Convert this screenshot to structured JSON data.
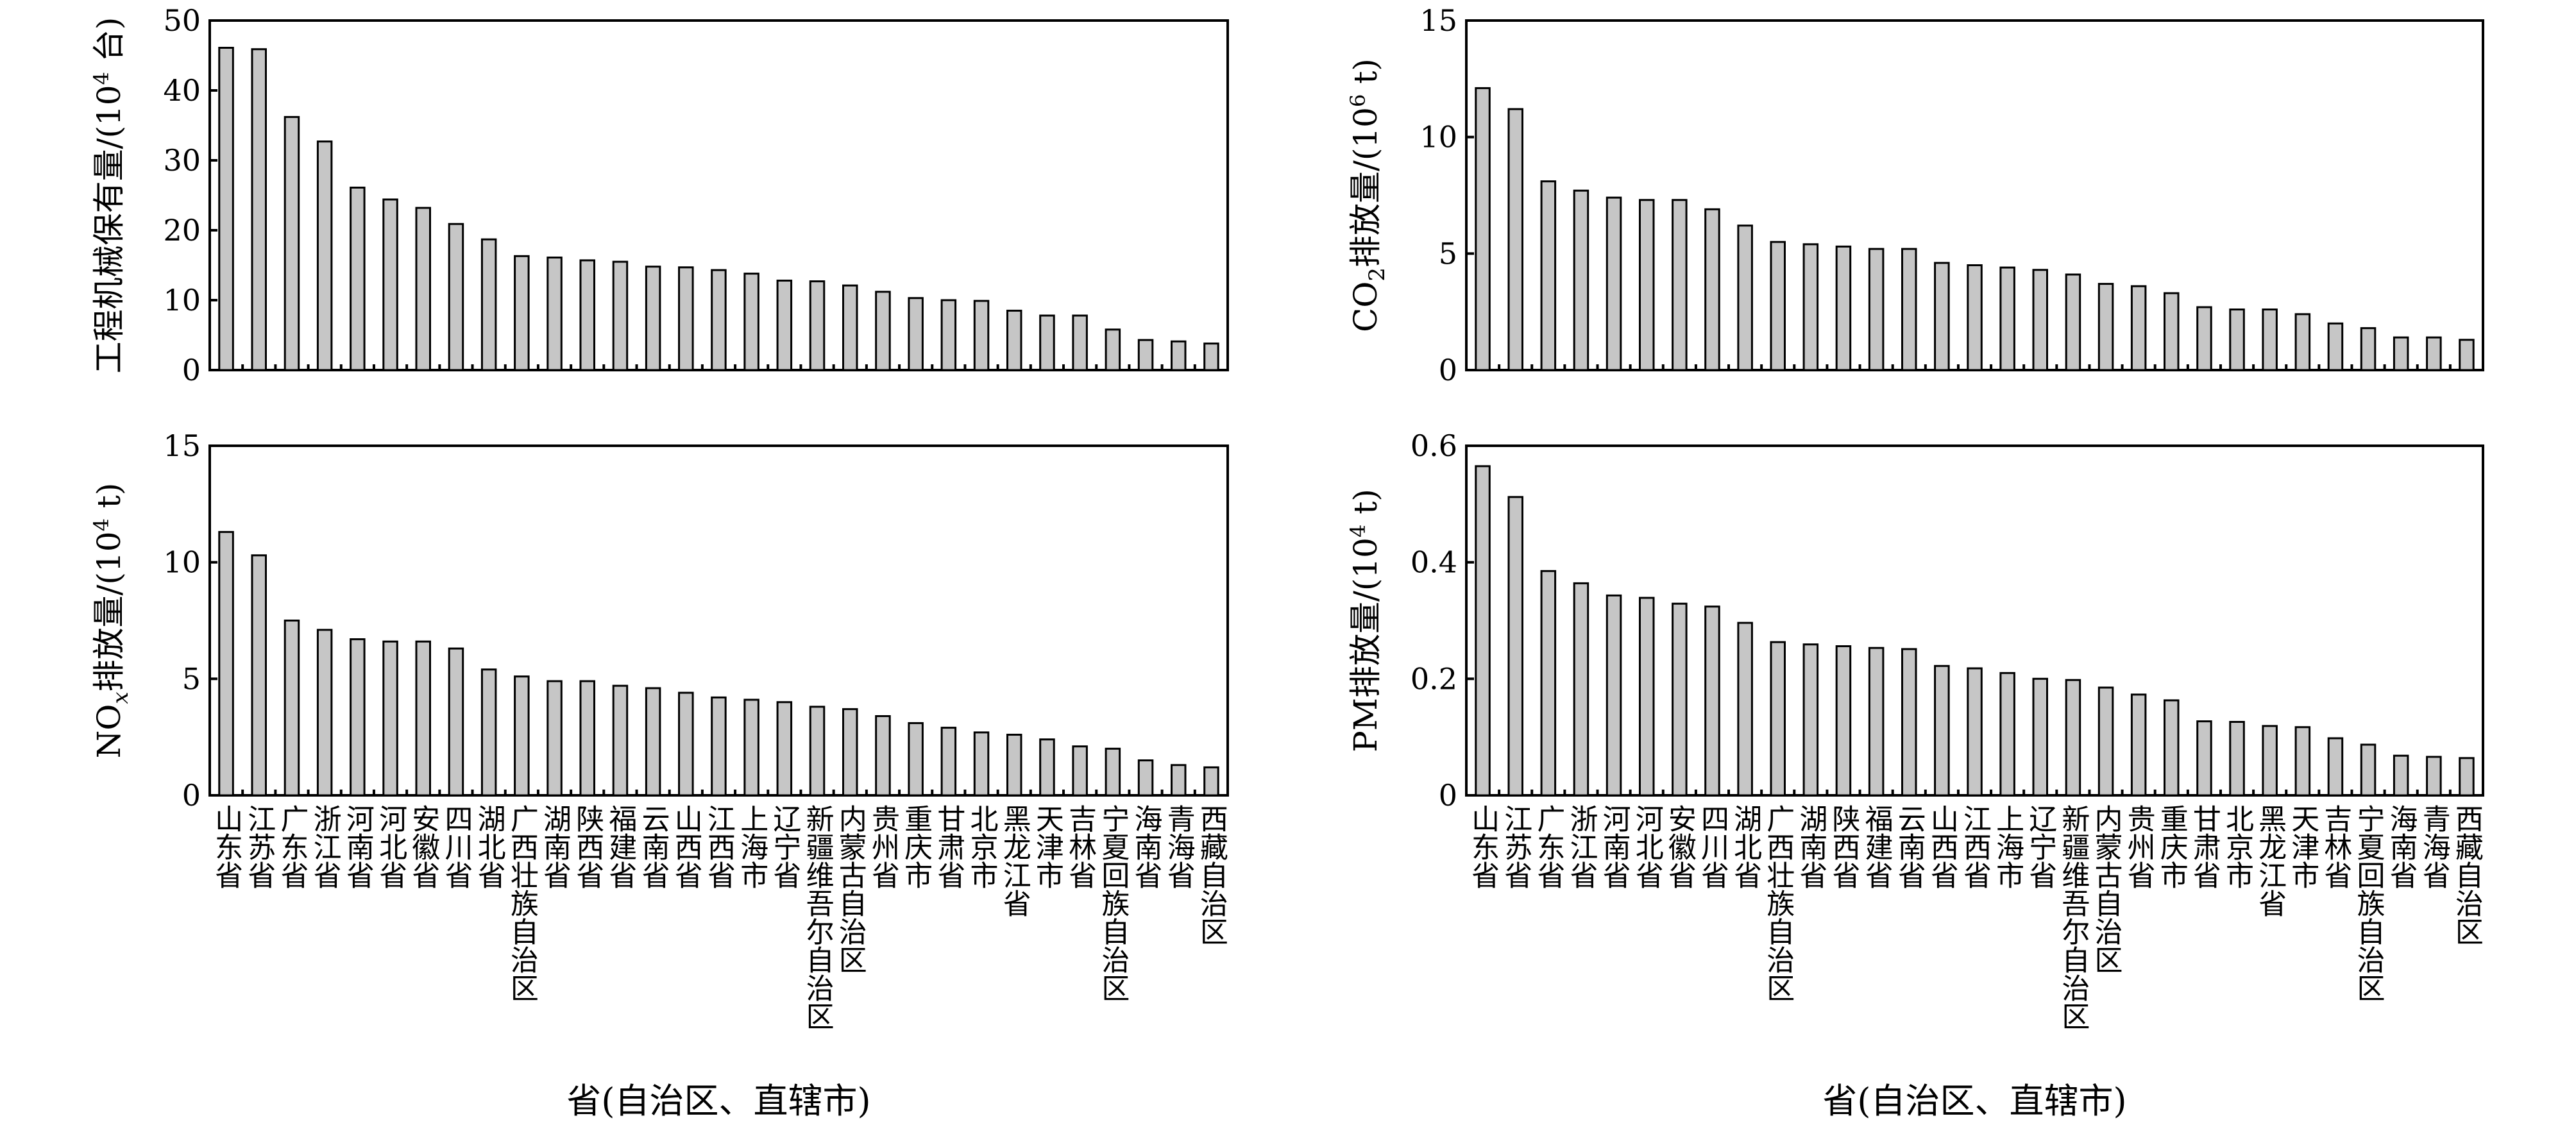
{
  "categories": [
    "山东省",
    "江苏省",
    "广东省",
    "浙江省",
    "河南省",
    "河北省",
    "安徽省",
    "四川省",
    "湖北省",
    "广西壮族自治区",
    "湖南省",
    "陕西省",
    "福建省",
    "云南省",
    "山西省",
    "江西省",
    "上海市",
    "辽宁省",
    "新疆维吾尔自治区",
    "内蒙古自治区",
    "贵州省",
    "重庆市",
    "甘肃省",
    "北京市",
    "黑龙江省",
    "天津市",
    "吉林省",
    "宁夏回族自治区",
    "海南省",
    "青海省",
    "西藏自治区"
  ],
  "charts": [
    {
      "id": "machinery",
      "ylabel_main": "工程机械保有量/(10",
      "ylabel_sup": "4",
      "ylabel_unit": " 台)",
      "xlabel": "",
      "ylim": [
        0,
        50
      ],
      "yticks": [
        "0",
        "10",
        "20",
        "30",
        "40",
        "50"
      ]
    },
    {
      "id": "co2",
      "ylabel_pre": "CO",
      "ylabel_sub": "2",
      "ylabel_main": "排放量/(10",
      "ylabel_sup": "6",
      "ylabel_unit": " t)",
      "xlabel": "",
      "ylim": [
        0,
        15
      ],
      "yticks": [
        "0",
        "5",
        "10",
        "15"
      ]
    },
    {
      "id": "nox",
      "ylabel_pre": "NO",
      "ylabel_sub": "x",
      "ylabel_main": "排放量/(10",
      "ylabel_sup": "4",
      "ylabel_unit": " t)",
      "xlabel": "省(自治区、直辖市)",
      "ylim": [
        0,
        15
      ],
      "yticks": [
        "0",
        "5",
        "10",
        "15"
      ]
    },
    {
      "id": "pm",
      "ylabel_main": "PM排放量/(10",
      "ylabel_sup": "4",
      "ylabel_unit": " t)",
      "xlabel": "省(自治区、直辖市)",
      "ylim": [
        0,
        0.6
      ],
      "yticks": [
        "0",
        "0.2",
        "0.4",
        "0.6"
      ]
    }
  ],
  "chart_data": [
    {
      "type": "bar",
      "ylabel": "工程机械保有量/(10^4 台)",
      "ylim": [
        0,
        50
      ],
      "categories": [
        "山东省",
        "江苏省",
        "广东省",
        "浙江省",
        "河南省",
        "河北省",
        "安徽省",
        "四川省",
        "湖北省",
        "广西壮族自治区",
        "湖南省",
        "陕西省",
        "福建省",
        "云南省",
        "山西省",
        "江西省",
        "上海市",
        "辽宁省",
        "新疆维吾尔自治区",
        "内蒙古自治区",
        "贵州省",
        "重庆市",
        "甘肃省",
        "北京市",
        "黑龙江省",
        "天津市",
        "吉林省",
        "宁夏回族自治区",
        "海南省",
        "青海省",
        "西藏自治区"
      ],
      "values": [
        46.1,
        45.9,
        36.2,
        32.7,
        26.1,
        24.4,
        23.2,
        20.9,
        18.7,
        16.3,
        16.1,
        15.7,
        15.5,
        14.8,
        14.7,
        14.3,
        13.8,
        12.8,
        12.7,
        12.1,
        11.2,
        10.3,
        10.0,
        9.9,
        8.5,
        7.8,
        7.8,
        5.8,
        4.3,
        4.1,
        3.8
      ],
      "grid": false
    },
    {
      "type": "bar",
      "ylabel": "CO2排放量/(10^6 t)",
      "ylim": [
        0,
        15
      ],
      "categories": [
        "山东省",
        "江苏省",
        "广东省",
        "浙江省",
        "河南省",
        "河北省",
        "安徽省",
        "四川省",
        "湖北省",
        "广西壮族自治区",
        "湖南省",
        "陕西省",
        "福建省",
        "云南省",
        "山西省",
        "江西省",
        "上海市",
        "辽宁省",
        "新疆维吾尔自治区",
        "内蒙古自治区",
        "贵州省",
        "重庆市",
        "甘肃省",
        "北京市",
        "黑龙江省",
        "天津市",
        "吉林省",
        "宁夏回族自治区",
        "海南省",
        "青海省",
        "西藏自治区"
      ],
      "values": [
        12.1,
        11.2,
        8.1,
        7.7,
        7.4,
        7.3,
        7.3,
        6.9,
        6.2,
        5.5,
        5.4,
        5.3,
        5.2,
        5.2,
        4.6,
        4.5,
        4.4,
        4.3,
        4.1,
        3.7,
        3.6,
        3.3,
        2.7,
        2.6,
        2.6,
        2.4,
        2.0,
        1.8,
        1.4,
        1.4,
        1.3
      ],
      "grid": false
    },
    {
      "type": "bar",
      "ylabel": "NOx排放量/(10^4 t)",
      "xlabel": "省(自治区、直辖市)",
      "ylim": [
        0,
        15
      ],
      "categories": [
        "山东省",
        "江苏省",
        "广东省",
        "浙江省",
        "河南省",
        "河北省",
        "安徽省",
        "四川省",
        "湖北省",
        "广西壮族自治区",
        "湖南省",
        "陕西省",
        "福建省",
        "云南省",
        "山西省",
        "江西省",
        "上海市",
        "辽宁省",
        "新疆维吾尔自治区",
        "内蒙古自治区",
        "贵州省",
        "重庆市",
        "甘肃省",
        "北京市",
        "黑龙江省",
        "天津市",
        "吉林省",
        "宁夏回族自治区",
        "海南省",
        "青海省",
        "西藏自治区"
      ],
      "values": [
        11.3,
        10.3,
        7.5,
        7.1,
        6.7,
        6.6,
        6.6,
        6.3,
        5.4,
        5.1,
        4.9,
        4.9,
        4.7,
        4.6,
        4.4,
        4.2,
        4.1,
        4.0,
        3.8,
        3.7,
        3.4,
        3.1,
        2.9,
        2.7,
        2.6,
        2.4,
        2.1,
        2.0,
        1.5,
        1.3,
        1.2
      ],
      "grid": false
    },
    {
      "type": "bar",
      "ylabel": "PM排放量/(10^4 t)",
      "xlabel": "省(自治区、直辖市)",
      "ylim": [
        0,
        0.6
      ],
      "categories": [
        "山东省",
        "江苏省",
        "广东省",
        "浙江省",
        "河南省",
        "河北省",
        "安徽省",
        "四川省",
        "湖北省",
        "广西壮族自治区",
        "湖南省",
        "陕西省",
        "福建省",
        "云南省",
        "山西省",
        "江西省",
        "上海市",
        "辽宁省",
        "新疆维吾尔自治区",
        "内蒙古自治区",
        "贵州省",
        "重庆市",
        "甘肃省",
        "北京市",
        "黑龙江省",
        "天津市",
        "吉林省",
        "宁夏回族自治区",
        "海南省",
        "青海省",
        "西藏自治区"
      ],
      "values": [
        0.565,
        0.512,
        0.385,
        0.364,
        0.343,
        0.339,
        0.329,
        0.324,
        0.296,
        0.263,
        0.259,
        0.256,
        0.253,
        0.251,
        0.222,
        0.218,
        0.21,
        0.2,
        0.198,
        0.185,
        0.173,
        0.163,
        0.127,
        0.126,
        0.119,
        0.117,
        0.098,
        0.087,
        0.068,
        0.066,
        0.064
      ],
      "grid": false
    }
  ]
}
